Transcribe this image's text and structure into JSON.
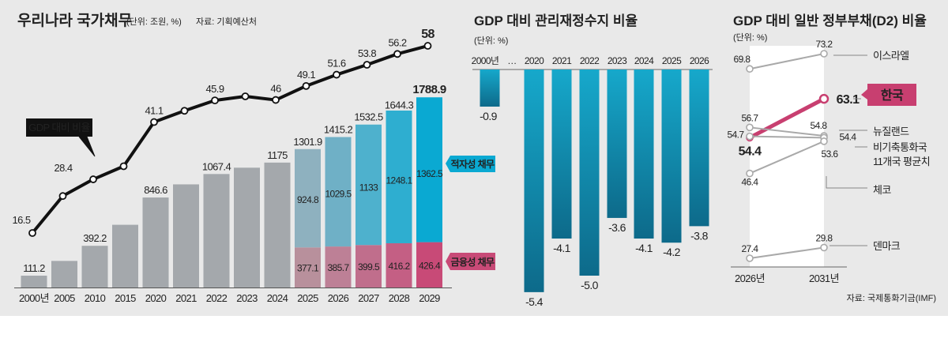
{
  "colors": {
    "background": "#e9e9e9",
    "history_bar": "#a4a8ac",
    "deficit_debt": "#0aa9d2",
    "financial_debt": "#c84a77",
    "line": "#111111",
    "balance_bar_top": "#16a8cb",
    "balance_bar_bottom": "#0d6a8a",
    "korea": "#c83f70",
    "others": "#a9a9a9"
  },
  "chart_data": [
    {
      "type": "bar+line",
      "title": "우리나라 국가채무",
      "unit": "(단위: 조원, %)",
      "source": "자료: 기획예산처",
      "categories": [
        "2000년",
        "2005",
        "2010",
        "2015",
        "2020",
        "2021",
        "2022",
        "2023",
        "2024",
        "2025",
        "2026",
        "2027",
        "2028",
        "2029"
      ],
      "totals": [
        111.2,
        250,
        392.2,
        590,
        846.6,
        970,
        1067.4,
        1127,
        1175,
        1301.9,
        1415.2,
        1532.5,
        1644.3,
        1788.9
      ],
      "total_labels": [
        "111.2",
        "",
        "392.2",
        "",
        "846.6",
        "",
        "1067.4",
        "",
        "1175",
        "1301.9",
        "1415.2",
        "1532.5",
        "1644.3",
        "1788.9"
      ],
      "stacked_from_index": 9,
      "series": [
        {
          "name": "적자성 채무",
          "values": [
            null,
            null,
            null,
            null,
            null,
            null,
            null,
            null,
            null,
            924.8,
            1029.5,
            1133,
            1248.1,
            1362.5
          ],
          "labels": [
            "",
            "",
            "",
            "",
            "",
            "",
            "",
            "",
            "",
            "924.8",
            "1029.5",
            "1133",
            "1248.1",
            "1362.5"
          ]
        },
        {
          "name": "금융성 채무",
          "values": [
            null,
            null,
            null,
            null,
            null,
            null,
            null,
            null,
            null,
            377.1,
            385.7,
            399.5,
            416.2,
            426.4
          ],
          "labels": [
            "",
            "",
            "",
            "",
            "",
            "",
            "",
            "",
            "",
            "377.1",
            "385.7",
            "399.5",
            "416.2",
            "426.4"
          ]
        }
      ],
      "line": {
        "name": "GDP 대비 비율",
        "values": [
          16.5,
          24.7,
          28.4,
          31.3,
          41.1,
          43.6,
          45.9,
          46.8,
          46,
          49.1,
          51.6,
          53.8,
          56.2,
          58
        ],
        "labels": [
          "16.5",
          "",
          "28.4",
          "",
          "41.1",
          "",
          "45.9",
          "",
          "46",
          "49.1",
          "51.6",
          "53.8",
          "56.2",
          "58"
        ]
      }
    },
    {
      "type": "bar",
      "title": "GDP 대비 관리재정수지 비율",
      "unit": "(단위: %)",
      "categories": [
        "2000년",
        "2020",
        "2021",
        "2022",
        "2023",
        "2024",
        "2025",
        "2026"
      ],
      "gap_marker": "…",
      "values": [
        -0.9,
        -5.4,
        -4.1,
        -5.0,
        -3.6,
        -4.1,
        -4.2,
        -3.8
      ],
      "labels": [
        "-0.9",
        "-5.4",
        "-4.1",
        "-5.0",
        "-3.6",
        "-4.1",
        "-4.2",
        "-3.8"
      ]
    },
    {
      "type": "line",
      "title": "GDP 대비 일반 정부부채(D2) 비율",
      "unit": "(단위: %)",
      "source": "자료: 국제통화기금(IMF)",
      "x": [
        "2026년",
        "2031년"
      ],
      "series": [
        {
          "name": "이스라엘",
          "values": [
            69.8,
            73.2
          ],
          "labels": [
            "69.8",
            "73.2"
          ]
        },
        {
          "name": "한국",
          "values": [
            54.4,
            63.1
          ],
          "labels": [
            "54.4",
            "63.1"
          ],
          "highlight": true
        },
        {
          "name": "뉴질랜드",
          "values": [
            56.7,
            54.8
          ],
          "labels": [
            "56.7",
            "54.8"
          ]
        },
        {
          "name": "비기축통화국",
          "name2": "11개국 평균치",
          "values": [
            54.7,
            54.4
          ],
          "labels": [
            "54.7",
            "54.4"
          ]
        },
        {
          "name": "체코",
          "values": [
            46.4,
            53.6
          ],
          "labels": [
            "46.4",
            "53.6"
          ]
        },
        {
          "name": "덴마크",
          "values": [
            27.4,
            29.8
          ],
          "labels": [
            "27.4",
            "29.8"
          ]
        }
      ]
    }
  ]
}
